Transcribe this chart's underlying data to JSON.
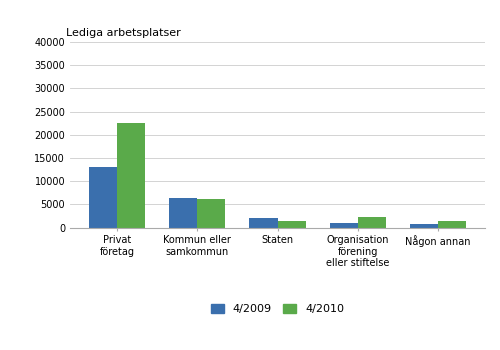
{
  "categories": [
    "Privat\nföretag",
    "Kommun eller\nsamkommun",
    "Staten",
    "Organisation\nförening\neller stiftelse",
    "Någon annan"
  ],
  "values_2009": [
    13000,
    6300,
    2000,
    900,
    700
  ],
  "values_2010": [
    22500,
    6100,
    1400,
    2200,
    1500
  ],
  "color_2009": "#3a6fad",
  "color_2010": "#5aaa4a",
  "legend_2009": "4/2009",
  "legend_2010": "4/2010",
  "ylim": [
    0,
    40000
  ],
  "yticks": [
    0,
    5000,
    10000,
    15000,
    20000,
    25000,
    30000,
    35000,
    40000
  ],
  "ylabel": "Lediga arbetsplatser",
  "bar_width": 0.35,
  "figsize": [
    5.0,
    3.5
  ],
  "dpi": 100,
  "background_color": "#ffffff",
  "grid_color": "#cccccc",
  "ylabel_fontsize": 8,
  "tick_fontsize": 7,
  "legend_fontsize": 8
}
